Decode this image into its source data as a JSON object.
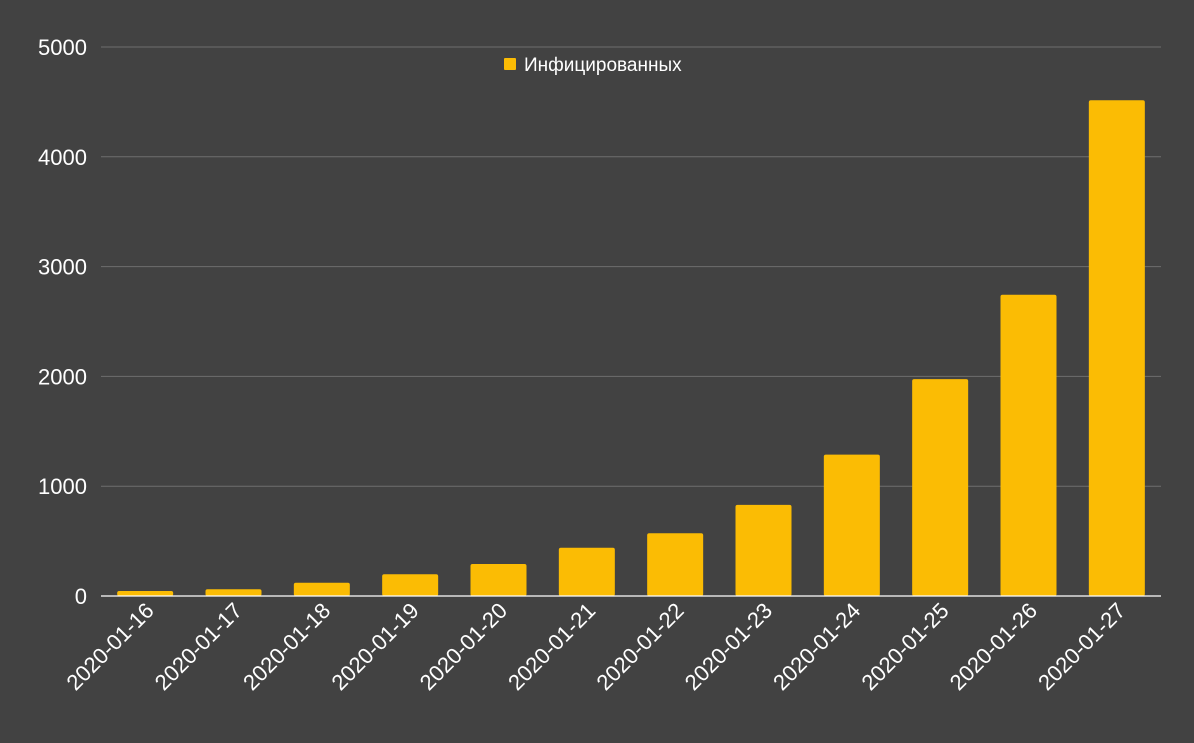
{
  "colors": {
    "background": "#424242",
    "bar": "#FBBC04",
    "gridline": "#6E6E6E",
    "baseline": "#FFFFFF",
    "text": "#FFFFFF"
  },
  "legend": {
    "label": "Инфицированных",
    "placement": "top-center"
  },
  "chart_data": {
    "type": "bar",
    "title": "",
    "xlabel": "",
    "ylabel": "",
    "categories": [
      "2020-01-16",
      "2020-01-17",
      "2020-01-18",
      "2020-01-19",
      "2020-01-20",
      "2020-01-21",
      "2020-01-22",
      "2020-01-23",
      "2020-01-24",
      "2020-01-25",
      "2020-01-26",
      "2020-01-27"
    ],
    "series": [
      {
        "name": "Инфицированных",
        "values": [
          45,
          62,
          121,
          198,
          291,
          440,
          571,
          830,
          1287,
          1975,
          2744,
          4515
        ]
      }
    ],
    "ylim": [
      0,
      5000
    ],
    "yticks": [
      0,
      1000,
      2000,
      3000,
      4000,
      5000
    ],
    "grid": true
  }
}
